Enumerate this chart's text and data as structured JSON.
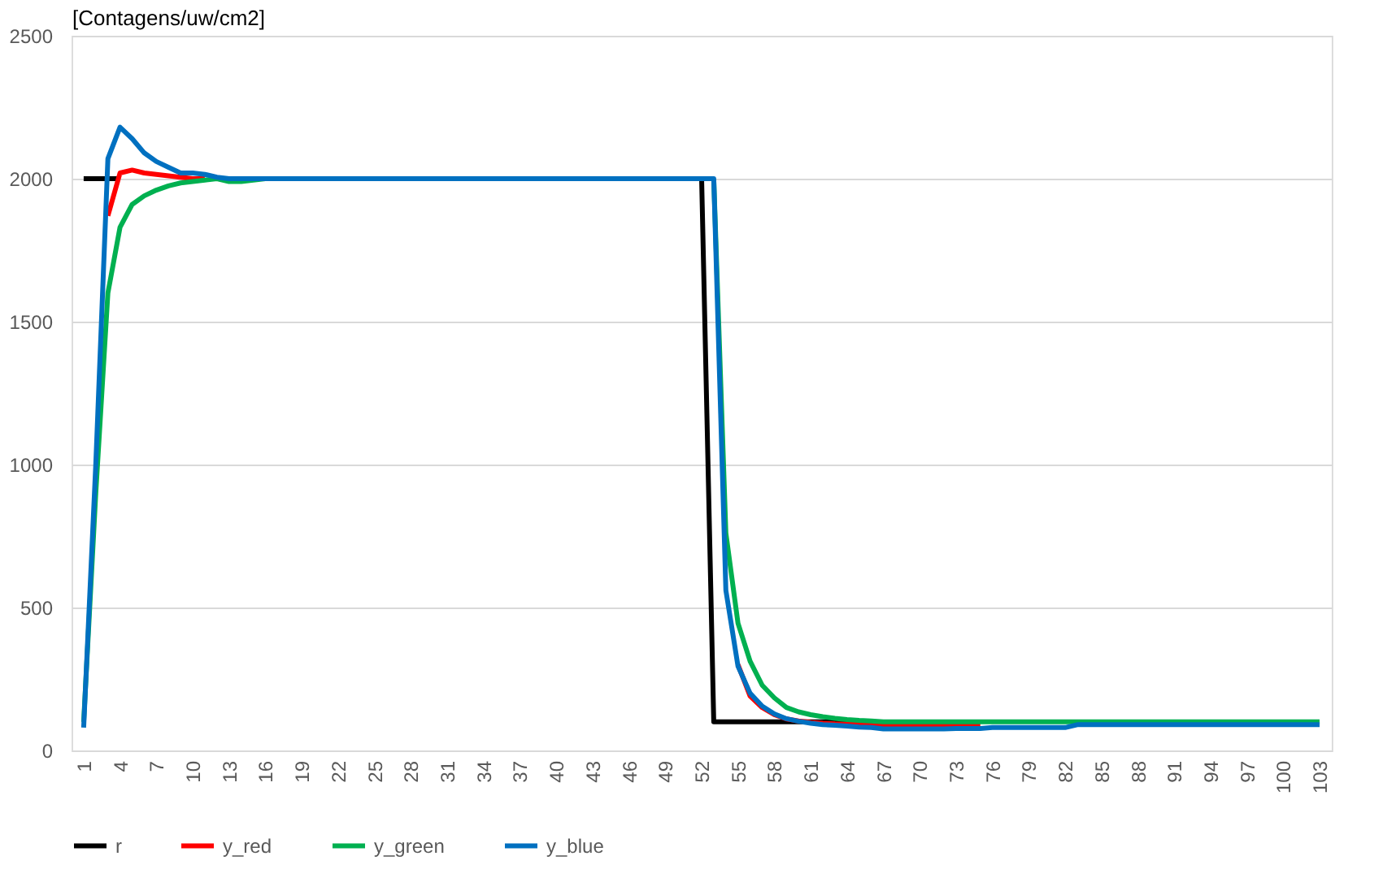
{
  "chart_data": {
    "type": "line",
    "ylabel": "[Contagens/uw/cm2]",
    "categories": [
      "1",
      null,
      null,
      "4",
      null,
      null,
      "7",
      null,
      null,
      "10",
      null,
      null,
      "13",
      null,
      null,
      "16",
      null,
      null,
      "19",
      null,
      null,
      "22",
      null,
      null,
      "25",
      null,
      null,
      "28",
      null,
      null,
      "31",
      null,
      null,
      "34",
      null,
      null,
      "37",
      null,
      null,
      "40",
      null,
      null,
      "43",
      null,
      null,
      "46",
      null,
      null,
      "49",
      null,
      null,
      "52",
      null,
      null,
      "55",
      null,
      null,
      "58",
      null,
      null,
      "61",
      null,
      null,
      "64",
      null,
      null,
      "67",
      null,
      null,
      "70",
      null,
      null,
      "73",
      null,
      null,
      "76",
      null,
      null,
      "79",
      null,
      null,
      "82",
      null,
      null,
      "85",
      null,
      null,
      "88",
      null,
      null,
      "91",
      null,
      null,
      "94",
      null,
      null,
      "97",
      null,
      null,
      "100",
      null,
      null,
      "103"
    ],
    "series": [
      {
        "name": "r",
        "color": "#000000",
        "values": [
          2000,
          2000,
          2000,
          2000,
          null,
          null,
          null,
          null,
          null,
          null,
          null,
          null,
          null,
          null,
          null,
          null,
          null,
          null,
          null,
          null,
          null,
          null,
          null,
          null,
          null,
          null,
          null,
          null,
          null,
          null,
          null,
          null,
          null,
          null,
          null,
          null,
          null,
          null,
          null,
          null,
          null,
          null,
          null,
          null,
          null,
          null,
          null,
          null,
          null,
          null,
          null,
          2000,
          100,
          100,
          100,
          100,
          100,
          100,
          100,
          100,
          100,
          100,
          100,
          100,
          null,
          null,
          null,
          null,
          null,
          null,
          null,
          null,
          null,
          null,
          null,
          null,
          null,
          null,
          null,
          null,
          null,
          null,
          null,
          null,
          null,
          null,
          null,
          null,
          null,
          null,
          null,
          null,
          null,
          null,
          null,
          null,
          null,
          null,
          null,
          null,
          null,
          null,
          null
        ]
      },
      {
        "name": "y_red",
        "color": "#ff0000",
        "values": [
          null,
          null,
          1870,
          2020,
          2030,
          2020,
          2015,
          2010,
          2005,
          2000,
          2000,
          null,
          null,
          null,
          null,
          null,
          null,
          null,
          null,
          null,
          null,
          null,
          null,
          null,
          null,
          null,
          null,
          null,
          null,
          null,
          null,
          null,
          null,
          null,
          null,
          null,
          null,
          null,
          null,
          null,
          null,
          null,
          null,
          null,
          null,
          null,
          null,
          null,
          null,
          null,
          null,
          null,
          null,
          null,
          300,
          190,
          150,
          125,
          110,
          103,
          98,
          95,
          93,
          92,
          92,
          92,
          90,
          90,
          90,
          90,
          90,
          90,
          90,
          90,
          90,
          null,
          null,
          null,
          null,
          null,
          null,
          null,
          null,
          null,
          null,
          null,
          null,
          null,
          null,
          null,
          null,
          null,
          null,
          null,
          null,
          null,
          null,
          null,
          null,
          null,
          null,
          null,
          null
        ]
      },
      {
        "name": "y_green",
        "color": "#00b050",
        "values": [
          100,
          900,
          1600,
          1830,
          1910,
          1940,
          1960,
          1975,
          1985,
          1990,
          1995,
          2000,
          1990,
          1990,
          1995,
          2000,
          null,
          null,
          null,
          null,
          null,
          null,
          null,
          null,
          null,
          null,
          null,
          null,
          null,
          null,
          null,
          null,
          null,
          null,
          null,
          null,
          null,
          null,
          null,
          null,
          null,
          null,
          null,
          null,
          null,
          null,
          null,
          null,
          null,
          null,
          null,
          null,
          2000,
          760,
          445,
          312,
          228,
          184,
          150,
          135,
          125,
          118,
          112,
          108,
          105,
          103,
          100,
          100,
          100,
          100,
          100,
          100,
          100,
          100,
          100,
          100,
          100,
          100,
          100,
          100,
          100,
          100,
          100,
          100,
          100,
          100,
          100,
          100,
          100,
          100,
          100,
          100,
          100,
          100,
          100,
          100,
          100,
          100,
          100,
          100,
          100,
          100,
          100
        ]
      },
      {
        "name": "y_blue",
        "color": "#0070c0",
        "values": [
          80,
          1000,
          2070,
          2180,
          2140,
          2090,
          2060,
          2040,
          2020,
          2020,
          2015,
          2005,
          2000,
          2000,
          2000,
          2000,
          2000,
          2000,
          2000,
          2000,
          2000,
          2000,
          2000,
          2000,
          2000,
          2000,
          2000,
          2000,
          2000,
          2000,
          2000,
          2000,
          2000,
          2000,
          2000,
          2000,
          2000,
          2000,
          2000,
          2000,
          2000,
          2000,
          2000,
          2000,
          2000,
          2000,
          2000,
          2000,
          2000,
          2000,
          2000,
          2000,
          2000,
          560,
          295,
          200,
          155,
          128,
          111,
          102,
          95,
          90,
          88,
          85,
          82,
          80,
          75,
          75,
          75,
          75,
          75,
          75,
          77,
          77,
          77,
          80,
          80,
          80,
          80,
          80,
          80,
          80,
          90,
          90,
          90,
          90,
          90,
          90,
          90,
          90,
          90,
          90,
          90,
          90,
          90,
          90,
          90,
          90,
          90,
          90,
          90,
          90,
          90
        ]
      }
    ],
    "ylim": [
      0,
      2500
    ],
    "yticks": [
      0,
      500,
      1000,
      1500,
      2000,
      2500
    ],
    "grid": "y",
    "legend": "bottom",
    "line_style": "solid"
  }
}
